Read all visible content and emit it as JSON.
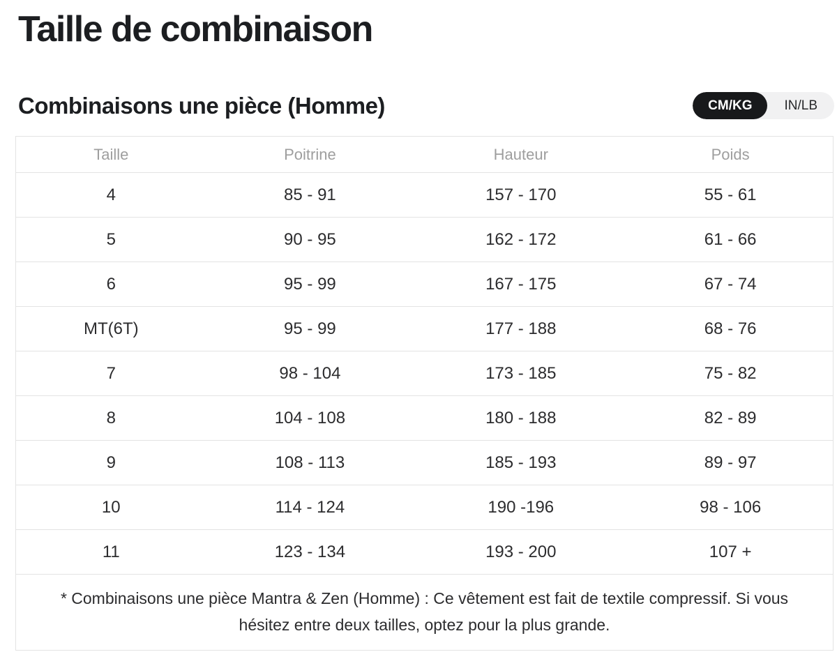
{
  "page": {
    "title": "Taille de combinaison"
  },
  "section": {
    "heading": "Combinaisons une pièce (Homme)"
  },
  "unit_toggle": {
    "options": [
      {
        "label": "CM/KG",
        "active": true
      },
      {
        "label": "IN/LB",
        "active": false
      }
    ]
  },
  "table": {
    "headers": [
      "Taille",
      "Poitrine",
      "Hauteur",
      "Poids"
    ],
    "rows": [
      [
        "4",
        "85 - 91",
        "157 - 170",
        "55 - 61"
      ],
      [
        "5",
        "90 - 95",
        "162 - 172",
        "61 - 66"
      ],
      [
        "6",
        "95 - 99",
        "167 - 175",
        "67 - 74"
      ],
      [
        "MT(6T)",
        "95 - 99",
        "177 - 188",
        "68 - 76"
      ],
      [
        "7",
        "98 - 104",
        "173 - 185",
        "75 - 82"
      ],
      [
        "8",
        "104 - 108",
        "180 - 188",
        "82 - 89"
      ],
      [
        "9",
        "108 - 113",
        "185 - 193",
        "89 - 97"
      ],
      [
        "10",
        "114 - 124",
        "190 -196",
        "98 - 106"
      ],
      [
        "11",
        "123 - 134",
        "193 - 200",
        "107 +"
      ]
    ],
    "footnote": "* Combinaisons une pièce Mantra & Zen (Homme) : Ce vêtement est fait de textile compressif. Si vous hésitez entre deux tailles, optez pour la plus grande."
  },
  "colors": {
    "title_ink": "#1c1e21",
    "cell_ink": "#2c2c2e",
    "header_muted": "#9e9e9e",
    "table_border": "#e3e3e3",
    "toggle_track": "#f1f1f2",
    "toggle_active": "#18191b",
    "background": "#ffffff"
  }
}
